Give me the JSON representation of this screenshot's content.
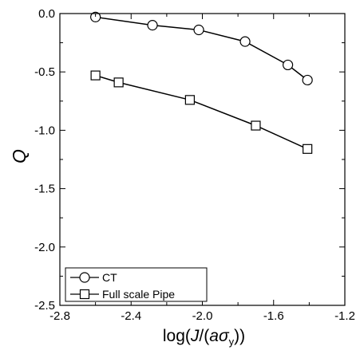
{
  "chart_data": {
    "type": "line",
    "title": "",
    "xlabel": "log(J/(aσ_y))",
    "xlabel_parts": {
      "prefix": "log(",
      "j": "J",
      "mid": "/(",
      "a": "a",
      "sigma": "σ",
      "sub": "y",
      "suffix": "))"
    },
    "ylabel": "Q",
    "xlim": [
      -2.8,
      -1.2
    ],
    "ylim": [
      -2.5,
      0.0
    ],
    "xticks": [
      -2.8,
      -2.4,
      -2.0,
      -1.6,
      -1.2
    ],
    "xtick_labels": [
      "-2.8",
      "-2.4",
      "-2.0",
      "-1.6",
      "-1.2"
    ],
    "yticks": [
      0.0,
      -0.5,
      -1.0,
      -1.5,
      -2.0,
      -2.5
    ],
    "ytick_labels": [
      "0.0",
      "-0.5",
      "-1.0",
      "-1.5",
      "-2.0",
      "-2.5"
    ],
    "grid": false,
    "legend_position": "bottom-left",
    "series": [
      {
        "name": "CT",
        "marker": "circle",
        "x": [
          -2.6,
          -2.28,
          -2.02,
          -1.76,
          -1.52,
          -1.41
        ],
        "y": [
          -0.03,
          -0.1,
          -0.14,
          -0.24,
          -0.44,
          -0.57
        ]
      },
      {
        "name": "Full scale Pipe",
        "marker": "square",
        "x": [
          -2.6,
          -2.47,
          -2.07,
          -1.7,
          -1.41
        ],
        "y": [
          -0.53,
          -0.59,
          -0.74,
          -0.96,
          -1.16
        ]
      }
    ]
  }
}
